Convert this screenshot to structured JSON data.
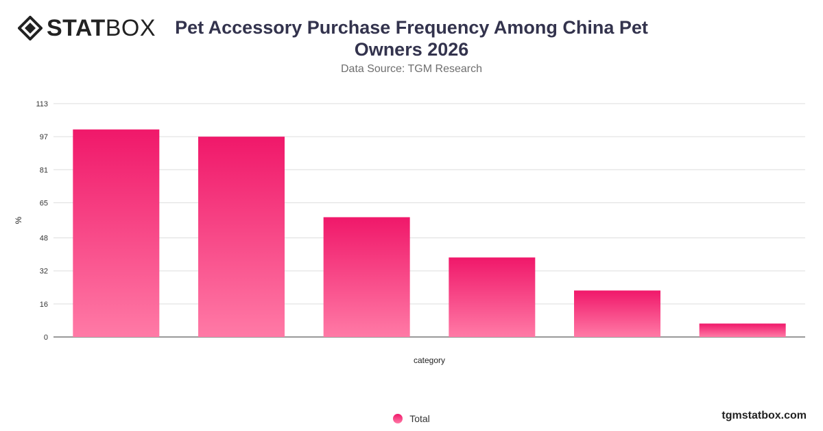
{
  "logo": {
    "bold_text": "STAT",
    "light_text": "BOX"
  },
  "header": {
    "title": "Pet Accessory Purchase Frequency Among China Pet Owners 2026",
    "subtitle": "Data Source: TGM Research"
  },
  "footer": {
    "brand": "tgmstatbox.com"
  },
  "colors": {
    "bar_top": "#f0186a",
    "bar_bottom": "#ff7aa6",
    "grid": "#dddddd"
  },
  "chart_data": {
    "type": "bar",
    "categories": [
      "",
      "",
      "",
      "",
      "",
      ""
    ],
    "series": [
      {
        "name": "Total",
        "values": [
          100.5,
          97,
          58,
          38.5,
          22.5,
          6.5
        ]
      }
    ],
    "xlabel": "category",
    "ylabel": "%",
    "ylim": [
      0,
      113
    ],
    "yticks": [
      0,
      16,
      32,
      48,
      65,
      81,
      97,
      113
    ],
    "grid": true,
    "legend_position": "bottom-center"
  }
}
